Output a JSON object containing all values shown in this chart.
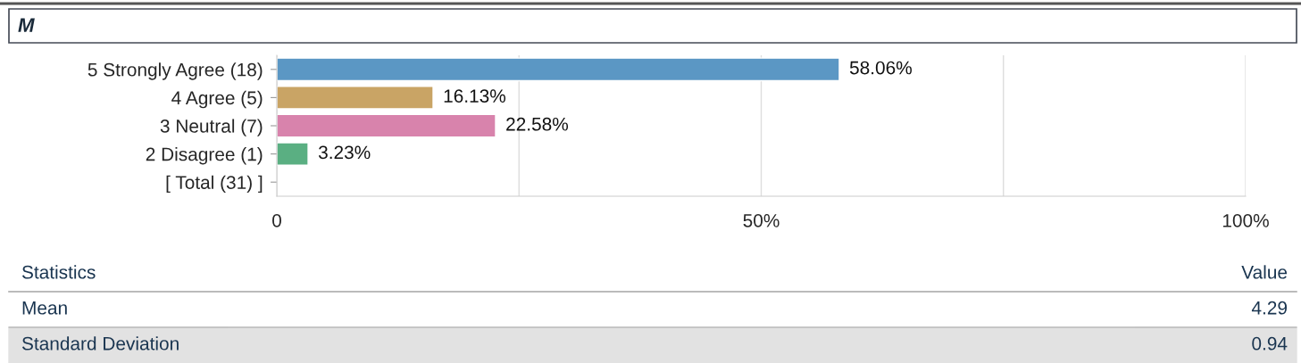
{
  "chart_data": {
    "type": "bar",
    "orientation": "horizontal",
    "title": "M",
    "categories": [
      "5 Strongly Agree (18)",
      "4 Agree (5)",
      "3 Neutral (7)",
      "2 Disagree (1)",
      "[ Total (31) ]"
    ],
    "values": [
      58.06,
      16.13,
      22.58,
      3.23,
      null
    ],
    "colors": [
      "#5b97c4",
      "#c9a465",
      "#d883ac",
      "#5aaf82",
      null
    ],
    "value_labels": [
      "58.06%",
      "16.13%",
      "22.58%",
      "3.23%",
      null
    ],
    "xlim": [
      0,
      100
    ],
    "xticks": [
      {
        "value": 0,
        "label": "0"
      },
      {
        "value": 25,
        "label": null
      },
      {
        "value": 50,
        "label": "50%"
      },
      {
        "value": 75,
        "label": null
      },
      {
        "value": 100,
        "label": "100%"
      }
    ],
    "grid": "x",
    "annotations": [
      "Statistics",
      "Value",
      "Mean",
      "4.29",
      "Standard Deviation",
      "0.94"
    ]
  }
}
